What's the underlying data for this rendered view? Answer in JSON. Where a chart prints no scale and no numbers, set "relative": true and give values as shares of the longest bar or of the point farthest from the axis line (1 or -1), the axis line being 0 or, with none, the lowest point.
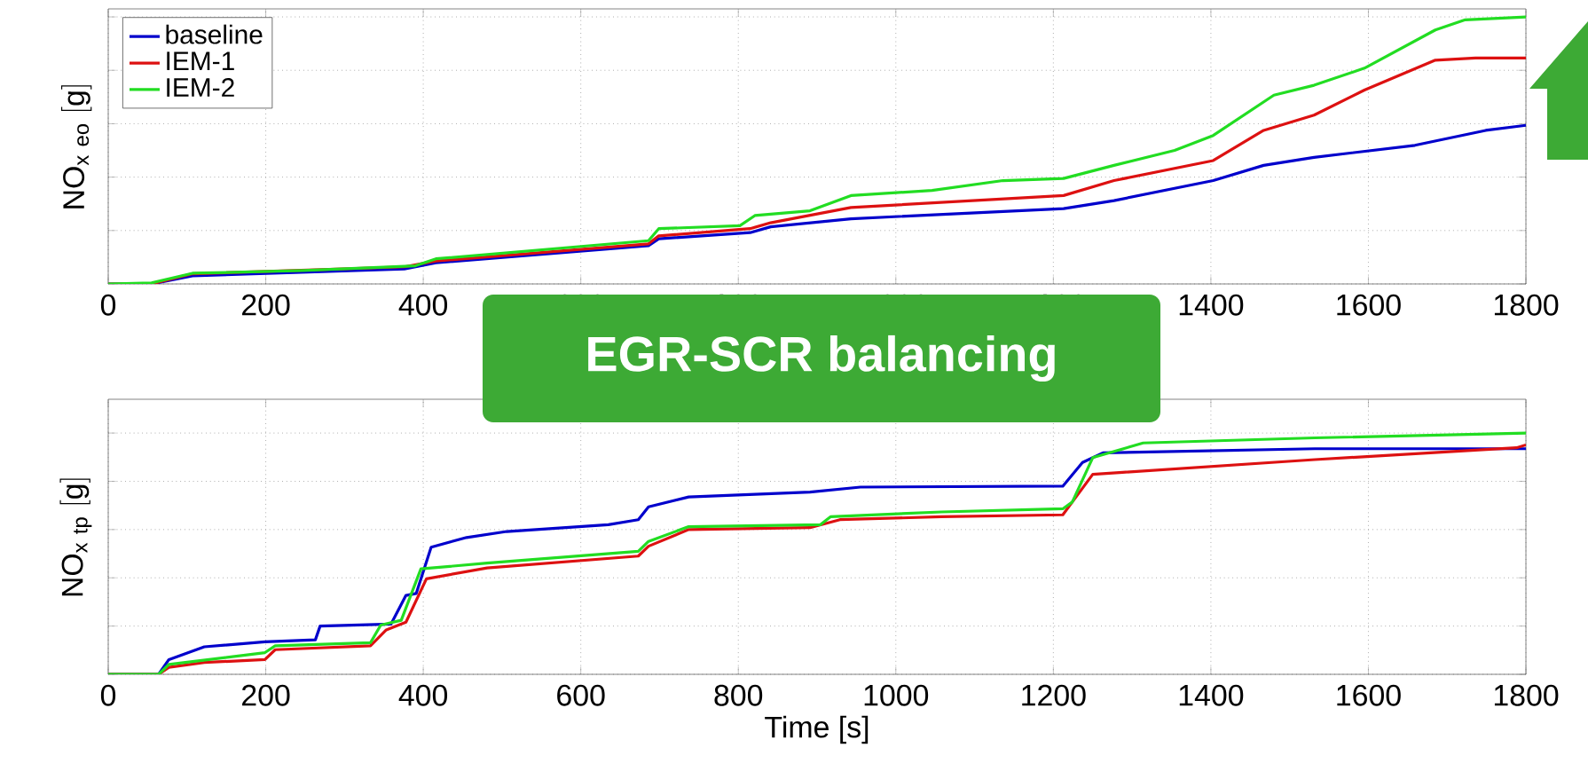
{
  "chart_data": [
    {
      "type": "line",
      "relative": true,
      "ylabel": "\\mathrm{NO}_{\\mathrm{x\\ eo}}\\ \\mathrm{[g]}",
      "xlim": [
        0,
        1800
      ],
      "xticks": [
        0,
        200,
        400,
        600,
        800,
        1000,
        1200,
        1400,
        1600,
        1800
      ],
      "grid": true,
      "legend": "top left",
      "marker": "none",
      "line_style": "solid",
      "annotations": [
        "EGR-SCR balancing"
      ],
      "series": [
        {
          "name": "baseline",
          "color": "#0000cc",
          "x": [
            0,
            55,
            107,
            376,
            416,
            686,
            699,
            815,
            841,
            943,
            1213,
            1277,
            1403,
            1467,
            1531,
            1659,
            1749,
            1800
          ],
          "values": [
            0,
            0,
            0.03,
            0.056,
            0.079,
            0.143,
            0.169,
            0.192,
            0.214,
            0.244,
            0.282,
            0.312,
            0.387,
            0.444,
            0.474,
            0.519,
            0.575,
            0.594
          ]
        },
        {
          "name": "IEM-1",
          "color": "#dd1111",
          "x": [
            0,
            55,
            107,
            376,
            416,
            686,
            699,
            815,
            841,
            943,
            1213,
            1277,
            1403,
            1467,
            1531,
            1595,
            1685,
            1736,
            1800
          ],
          "values": [
            0,
            0,
            0.038,
            0.064,
            0.086,
            0.15,
            0.18,
            0.207,
            0.229,
            0.286,
            0.331,
            0.387,
            0.462,
            0.575,
            0.632,
            0.726,
            0.838,
            0.846,
            0.846
          ]
        },
        {
          "name": "IEM-2",
          "color": "#22dd22",
          "x": [
            0,
            55,
            107,
            248,
            390,
            416,
            686,
            699,
            802,
            821,
            891,
            943,
            1046,
            1136,
            1213,
            1277,
            1354,
            1403,
            1480,
            1531,
            1595,
            1685,
            1723,
            1800
          ],
          "values": [
            0,
            0.004,
            0.04,
            0.05,
            0.068,
            0.094,
            0.162,
            0.207,
            0.218,
            0.256,
            0.274,
            0.331,
            0.35,
            0.387,
            0.395,
            0.444,
            0.5,
            0.556,
            0.707,
            0.744,
            0.808,
            0.951,
            0.989,
            1
          ]
        }
      ]
    },
    {
      "type": "line",
      "relative": true,
      "ylabel": "\\mathrm{NO}_{\\mathrm{x\\ tp}}\\ \\mathrm{[g]}",
      "xlabel": "Time [s]",
      "xlim": [
        0,
        1800
      ],
      "xticks": [
        0,
        200,
        400,
        600,
        800,
        1000,
        1200,
        1400,
        1600,
        1800
      ],
      "grid": true,
      "marker": "none",
      "line_style": "solid",
      "series": [
        {
          "color": "#0000cc",
          "x": [
            0,
            64,
            77,
            122,
            199,
            263,
            269,
            359,
            378,
            391,
            410,
            455,
            506,
            635,
            673,
            686,
            737,
            891,
            955,
            1212,
            1237,
            1263,
            1532,
            1800
          ],
          "values": [
            0,
            0,
            0.061,
            0.114,
            0.135,
            0.143,
            0.2,
            0.208,
            0.327,
            0.335,
            0.527,
            0.567,
            0.592,
            0.62,
            0.641,
            0.694,
            0.735,
            0.755,
            0.776,
            0.78,
            0.878,
            0.918,
            0.935,
            0.935
          ]
        },
        {
          "color": "#dd1111",
          "x": [
            0,
            64,
            77,
            122,
            199,
            212,
            333,
            353,
            378,
            404,
            481,
            673,
            686,
            737,
            891,
            929,
            1058,
            1212,
            1224,
            1250,
            1288,
            1532,
            1788,
            1800
          ],
          "values": [
            0,
            0,
            0.029,
            0.049,
            0.061,
            0.102,
            0.118,
            0.184,
            0.216,
            0.396,
            0.441,
            0.49,
            0.531,
            0.6,
            0.608,
            0.641,
            0.653,
            0.661,
            0.714,
            0.829,
            0.837,
            0.89,
            0.939,
            0.951
          ]
        },
        {
          "color": "#22dd22",
          "x": [
            0,
            64,
            77,
            199,
            212,
            333,
            346,
            372,
            397,
            481,
            673,
            686,
            737,
            904,
            917,
            1058,
            1212,
            1224,
            1250,
            1314,
            1532,
            1800
          ],
          "values": [
            0,
            0,
            0.041,
            0.09,
            0.118,
            0.131,
            0.204,
            0.224,
            0.437,
            0.461,
            0.51,
            0.551,
            0.612,
            0.62,
            0.653,
            0.673,
            0.686,
            0.714,
            0.898,
            0.959,
            0.98,
            1
          ]
        }
      ]
    }
  ]
}
